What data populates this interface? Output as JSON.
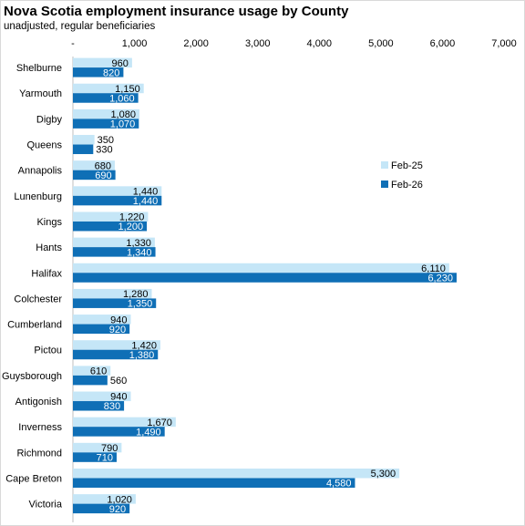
{
  "chart_data": {
    "type": "bar",
    "orientation": "horizontal",
    "title": "Nova Scotia employment insurance usage by County",
    "subtitle": "unadjusted, regular beneficiaries",
    "xlim": [
      0,
      7000
    ],
    "ticks": [
      0,
      1000,
      2000,
      3000,
      4000,
      5000,
      6000,
      7000
    ],
    "tick_labels": [
      "-",
      "1,000",
      "2,000",
      "3,000",
      "4,000",
      "5,000",
      "6,000",
      "7,000"
    ],
    "categories": [
      "Shelburne",
      "Yarmouth",
      "Digby",
      "Queens",
      "Annapolis",
      "Lunenburg",
      "Kings",
      "Hants",
      "Halifax",
      "Colchester",
      "Cumberland",
      "Pictou",
      "Guysborough",
      "Antigonish",
      "Inverness",
      "Richmond",
      "Cape Breton",
      "Victoria"
    ],
    "series": [
      {
        "name": "Feb-25",
        "color": "#c5e6f7",
        "values": [
          960,
          1150,
          1080,
          350,
          680,
          1440,
          1220,
          1330,
          6110,
          1280,
          940,
          1420,
          610,
          940,
          1670,
          790,
          5300,
          1020
        ]
      },
      {
        "name": "Feb-26",
        "color": "#0f6fb6",
        "values": [
          820,
          1060,
          1070,
          330,
          690,
          1440,
          1200,
          1340,
          6230,
          1350,
          920,
          1380,
          560,
          830,
          1490,
          710,
          4580,
          920
        ]
      }
    ],
    "legend_position": "right",
    "grid": false
  }
}
